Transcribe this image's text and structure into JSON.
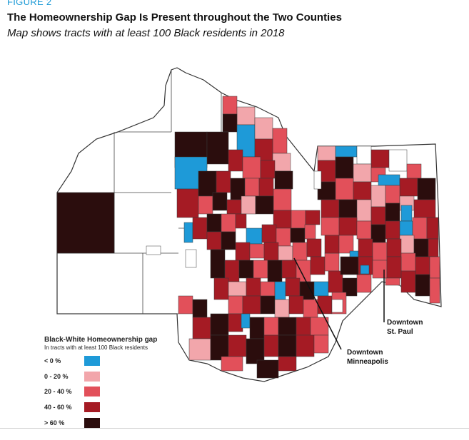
{
  "figure_label": "FIGURE 2",
  "title": "The Homeownership Gap Is Present throughout the Two Counties",
  "subtitle": "Map shows tracts with at least 100 Black residents in 2018",
  "legend": {
    "title": "Black-White Homeownership gap",
    "subtitle": "In tracts with at least 100 Black residents",
    "items": [
      {
        "label": "< 0 %",
        "color": "#1e9ad8"
      },
      {
        "label": "0 - 20 %",
        "color": "#f2a6ab"
      },
      {
        "label": "20 - 40 %",
        "color": "#e2505a"
      },
      {
        "label": "40 - 60 %",
        "color": "#a51b24"
      },
      {
        "label": "> 60 %",
        "color": "#2b0d0d"
      }
    ]
  },
  "callouts": {
    "minneapolis": [
      "Downtown",
      "Minneapolis"
    ],
    "st_paul": [
      "Downtown",
      "St. Paul"
    ]
  },
  "colors": {
    "no_data": "#ffffff",
    "tract_stroke": "#3a3a3a"
  },
  "source_note": ""
}
